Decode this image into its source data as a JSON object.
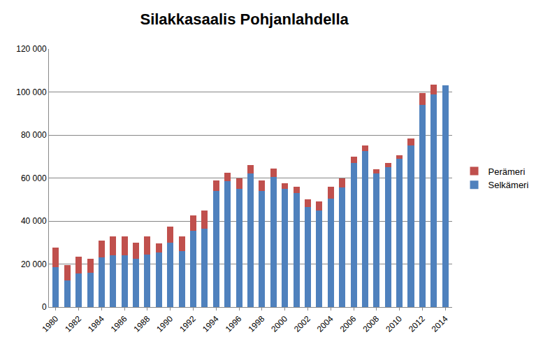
{
  "chart_data": {
    "type": "bar",
    "title": "Silakkasaalis Pohjanlahdella",
    "stacked": true,
    "grid": true,
    "legend": "right",
    "categories": [
      "1980",
      null,
      "1982",
      null,
      "1984",
      null,
      "1986",
      null,
      "1988",
      null,
      "1990",
      null,
      "1992",
      null,
      "1994",
      null,
      "1996",
      null,
      "1998",
      null,
      "2000",
      null,
      "2002",
      null,
      "2004",
      null,
      "2006",
      null,
      "2008",
      null,
      "2010",
      null,
      "2012",
      null,
      "2014"
    ],
    "series": [
      {
        "name": "Selkämeri",
        "color": "#4f81bd",
        "values": [
          18500,
          12500,
          15500,
          16000,
          23000,
          24000,
          24000,
          22500,
          24500,
          25500,
          30000,
          26000,
          35500,
          36500,
          54000,
          58500,
          55000,
          62000,
          54000,
          60500,
          55000,
          53000,
          46500,
          45000,
          50500,
          55500,
          67000,
          72500,
          62000,
          65000,
          69000,
          75000,
          94000,
          99000,
          103000
        ]
      },
      {
        "name": "Perämeri",
        "color": "#c0504d",
        "values": [
          9000,
          7000,
          8000,
          6500,
          8000,
          9000,
          9000,
          7500,
          8500,
          4000,
          7500,
          7000,
          7000,
          8500,
          5000,
          4000,
          5000,
          4000,
          5000,
          4000,
          2500,
          3000,
          3500,
          4000,
          5500,
          4500,
          3000,
          2500,
          2000,
          2000,
          1500,
          3500,
          5500,
          4500,
          0
        ]
      }
    ],
    "ylim": [
      0,
      120000
    ],
    "yticks": [
      0,
      {
        "value": 20000,
        "label": "20 000"
      },
      {
        "value": 40000,
        "label": "40 000"
      },
      {
        "value": 60000,
        "label": "60 000"
      },
      {
        "value": 80000,
        "label": "80 000"
      },
      {
        "value": 100000,
        "label": "100 000"
      },
      {
        "value": 120000,
        "label": "120 000"
      }
    ]
  }
}
